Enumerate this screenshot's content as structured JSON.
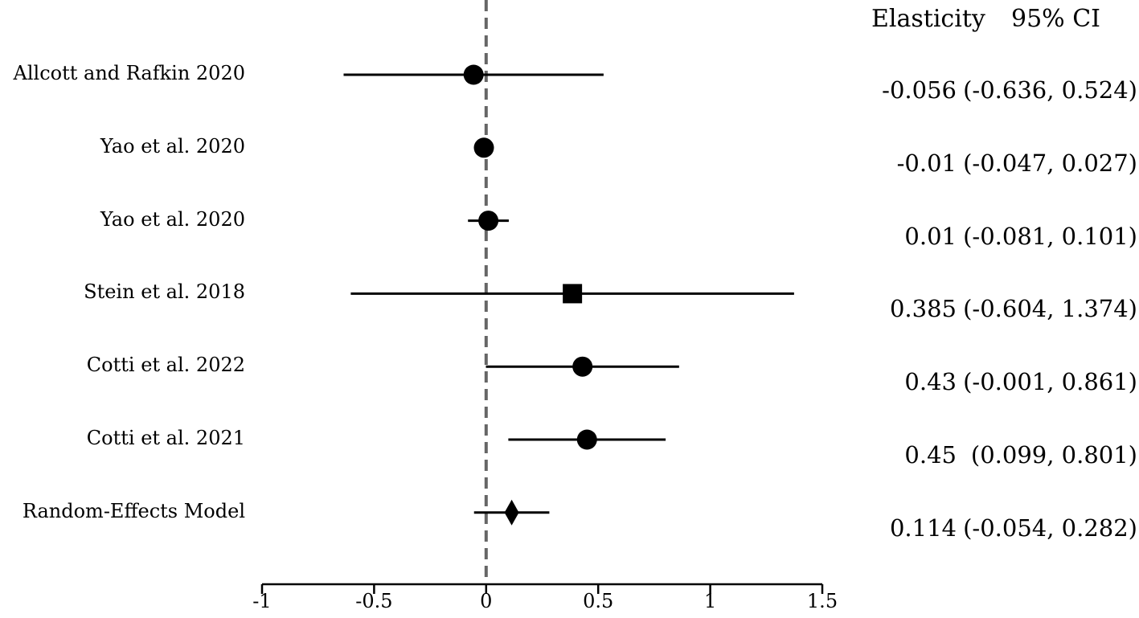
{
  "chart_data": {
    "type": "forest",
    "columns": {
      "estimate": "Elasticity",
      "ci": "95% CI"
    },
    "studies": [
      {
        "label": "Allcott and Rafkin 2020",
        "estimate": -0.056,
        "lower": -0.636,
        "upper": 0.524,
        "estimate_text": "-0.056",
        "ci_text": "(-0.636, 0.524)",
        "marker": "circle"
      },
      {
        "label": "Yao et al. 2020",
        "estimate": -0.01,
        "lower": -0.047,
        "upper": 0.027,
        "estimate_text": "-0.01",
        "ci_text": "(-0.047, 0.027)",
        "marker": "circle"
      },
      {
        "label": "Yao et al. 2020",
        "estimate": 0.01,
        "lower": -0.081,
        "upper": 0.101,
        "estimate_text": "0.01",
        "ci_text": "(-0.081, 0.101)",
        "marker": "circle"
      },
      {
        "label": "Stein et al. 2018",
        "estimate": 0.385,
        "lower": -0.604,
        "upper": 1.374,
        "estimate_text": "0.385",
        "ci_text": "(-0.604, 1.374)",
        "marker": "square"
      },
      {
        "label": "Cotti et al. 2022",
        "estimate": 0.43,
        "lower": -0.001,
        "upper": 0.861,
        "estimate_text": "0.43",
        "ci_text": "(-0.001, 0.861)",
        "marker": "circle"
      },
      {
        "label": "Cotti et al. 2021",
        "estimate": 0.45,
        "lower": 0.099,
        "upper": 0.801,
        "estimate_text": "0.45",
        "ci_text": "(0.099, 0.801)",
        "marker": "circle"
      },
      {
        "label": "Random-Effects Model",
        "estimate": 0.114,
        "lower": -0.054,
        "upper": 0.282,
        "estimate_text": "0.114",
        "ci_text": "(-0.054, 0.282)",
        "marker": "diamond"
      }
    ],
    "x_ticks": [
      -1,
      -0.5,
      0,
      0.5,
      1,
      1.5
    ],
    "x_tick_labels": [
      "-1",
      "-0.5",
      "0",
      "0.5",
      "1",
      "1.5"
    ],
    "xlim": [
      -1,
      1.5
    ],
    "reference_line": 0,
    "reference_line_style": "dashed",
    "reference_line_color": "#666666",
    "mark_color": "#000000"
  }
}
